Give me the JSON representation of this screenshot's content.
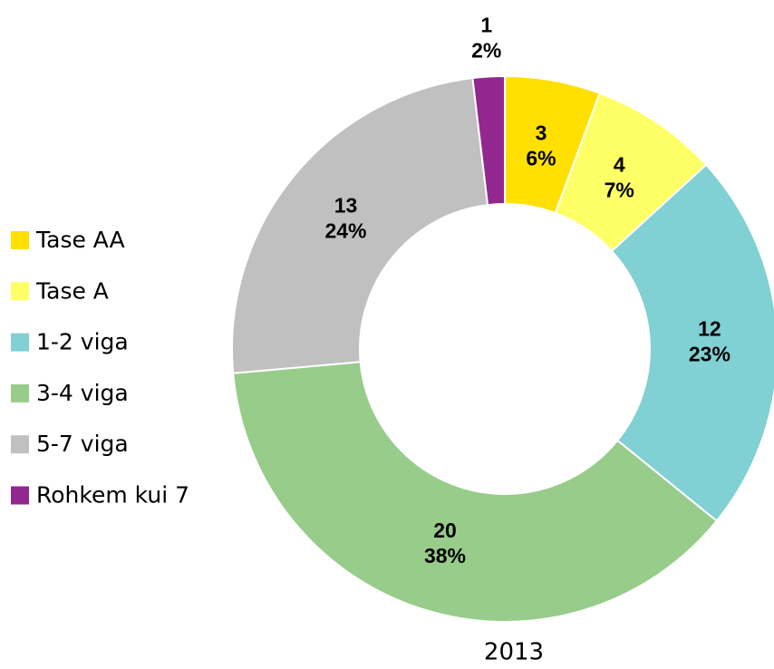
{
  "chart_data": {
    "type": "donut",
    "title": "2013",
    "categories": [
      "Tase AA",
      "Tase A",
      "1-2 viga",
      "3-4 viga",
      "5-7 viga",
      "Rohkem kui 7"
    ],
    "values": [
      3,
      4,
      12,
      20,
      13,
      1
    ],
    "percent_labels": [
      "6%",
      "7%",
      "23%",
      "38%",
      "24%",
      "2%"
    ],
    "colors": [
      "#ffe000",
      "#ffff66",
      "#80d0d4",
      "#98cc8a",
      "#c0c0c0",
      "#92278f"
    ],
    "legend": "left"
  }
}
